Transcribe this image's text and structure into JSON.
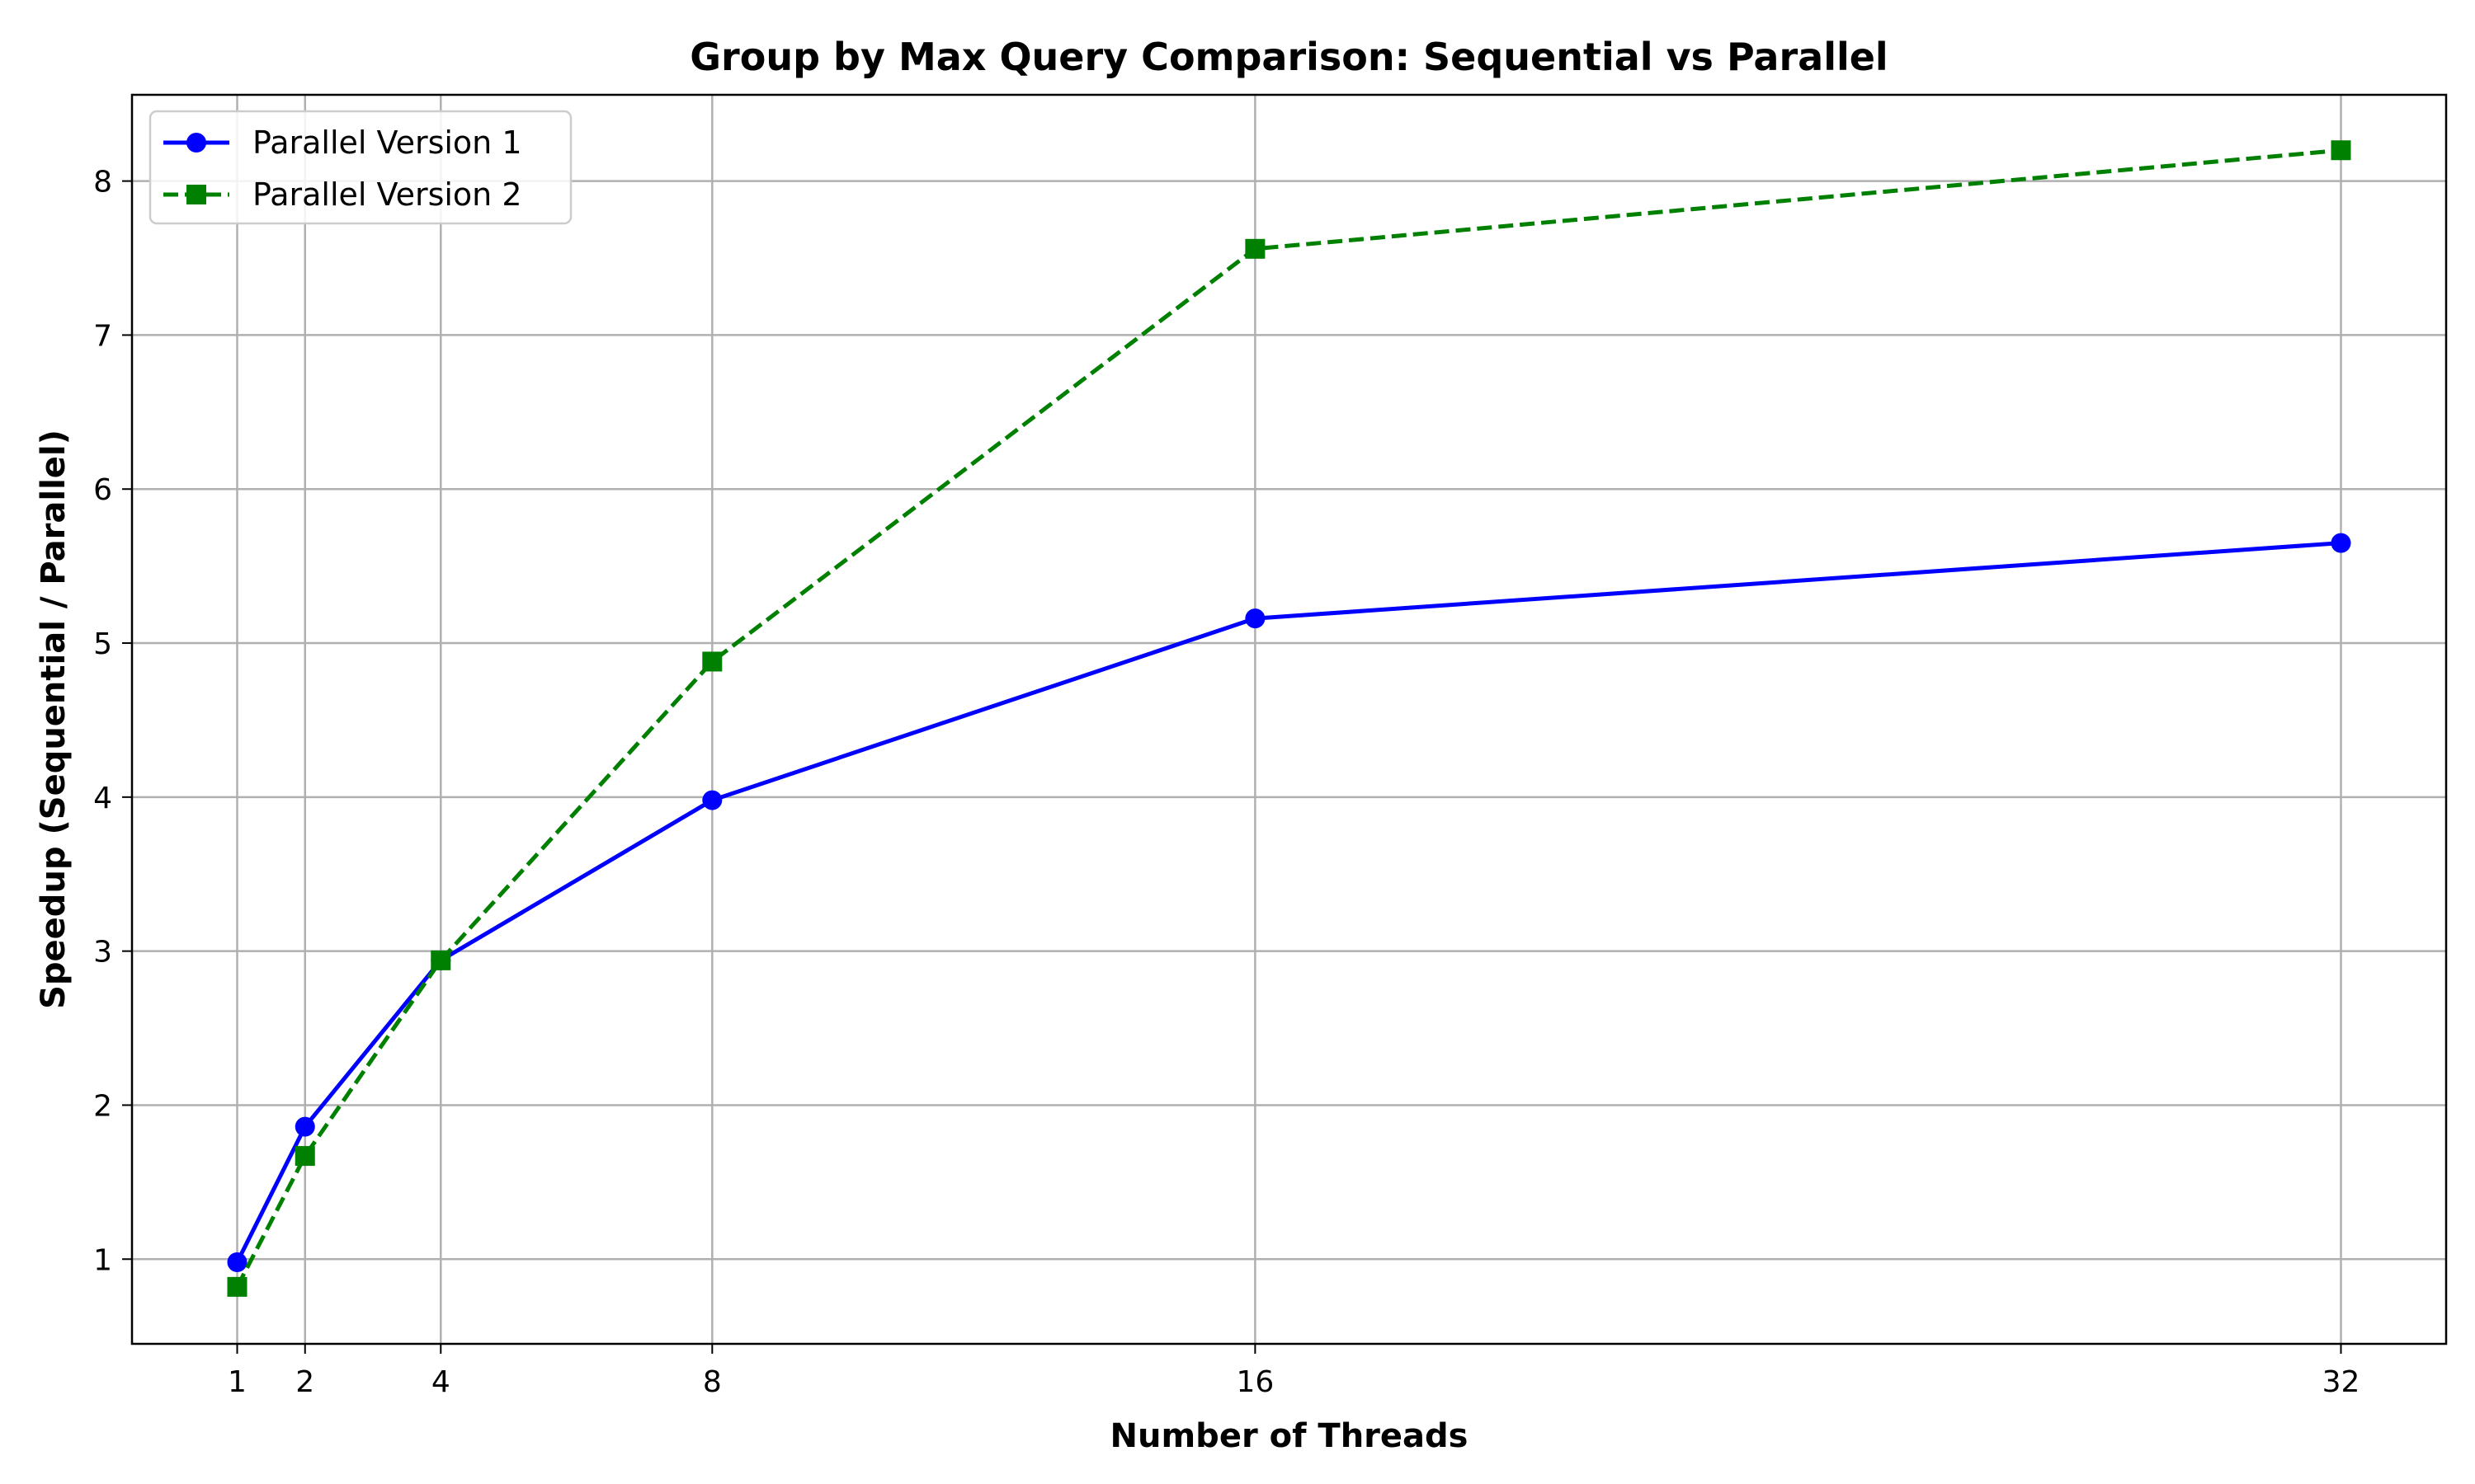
{
  "chart_data": {
    "type": "line",
    "title": "Group by Max Query Comparison: Sequential vs Parallel",
    "xlabel": "Number of Threads",
    "ylabel": "Speedup (Sequential / Parallel)",
    "x": [
      1,
      2,
      4,
      8,
      16,
      32
    ],
    "xticks": [
      "1",
      "2",
      "4",
      "8",
      "16",
      "32"
    ],
    "yticks": [
      1,
      2,
      3,
      4,
      5,
      6,
      7,
      8
    ],
    "xlim": [
      -0.55,
      33.55
    ],
    "ylim": [
      0.45,
      8.56
    ],
    "grid": true,
    "legend_position": "top-left",
    "series": [
      {
        "name": "Parallel Version 1",
        "values": [
          0.98,
          1.86,
          2.94,
          3.98,
          5.16,
          5.65
        ],
        "color": "#0000ff",
        "line_style": "solid",
        "marker": "circle"
      },
      {
        "name": "Parallel Version 2",
        "values": [
          0.82,
          1.67,
          2.94,
          4.88,
          7.56,
          8.2
        ],
        "color": "#008000",
        "line_style": "dashed",
        "marker": "square"
      }
    ]
  }
}
